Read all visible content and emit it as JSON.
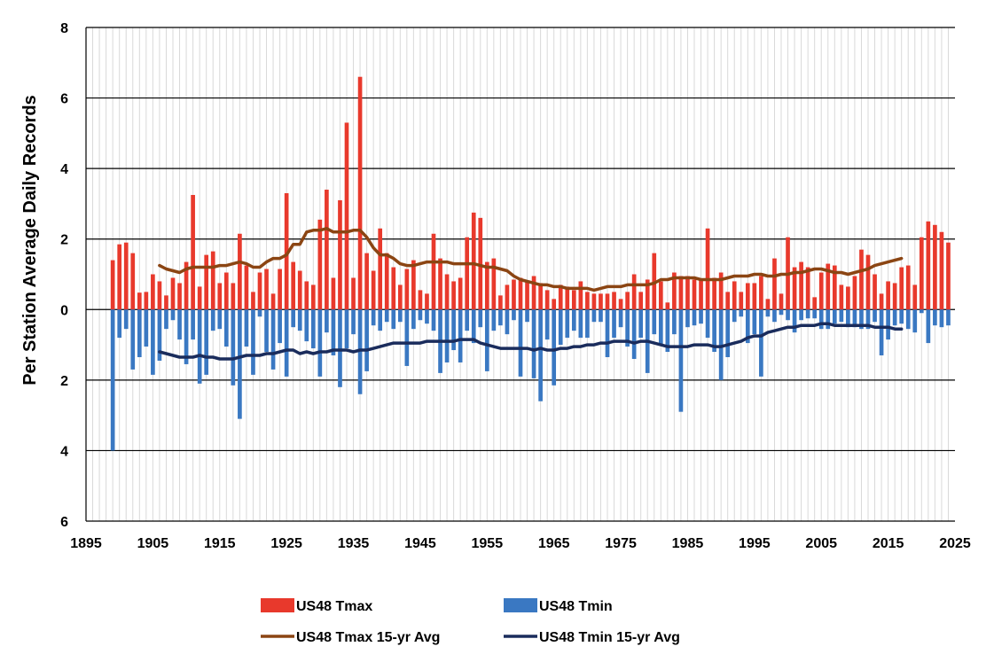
{
  "chart_data": {
    "type": "bar",
    "title": "",
    "ylabel": "Per Station Average Daily Records",
    "xlabel": "",
    "xlim": [
      1895,
      2025
    ],
    "ylim": [
      -6,
      8
    ],
    "x_ticks": [
      1895,
      1905,
      1915,
      1925,
      1935,
      1945,
      1955,
      1965,
      1975,
      1985,
      1995,
      2005,
      2015,
      2025
    ],
    "y_ticks": [
      {
        "value": 8,
        "label": "8"
      },
      {
        "value": 6,
        "label": "6"
      },
      {
        "value": 4,
        "label": "4"
      },
      {
        "value": 2,
        "label": "2"
      },
      {
        "value": 0,
        "label": "0"
      },
      {
        "value": -2,
        "label": "2"
      },
      {
        "value": -4,
        "label": "4"
      },
      {
        "value": -6,
        "label": "6"
      }
    ],
    "grid": "horizontal and vertical",
    "legend_position": "bottom",
    "colors": {
      "tmax": "#e8392c",
      "tmin": "#3a78c2",
      "tmax_avg": "#8b4513",
      "tmin_avg": "#1a2c5c"
    },
    "years": [
      1899,
      1900,
      1901,
      1902,
      1903,
      1904,
      1905,
      1906,
      1907,
      1908,
      1909,
      1910,
      1911,
      1912,
      1913,
      1914,
      1915,
      1916,
      1917,
      1918,
      1919,
      1920,
      1921,
      1922,
      1923,
      1924,
      1925,
      1926,
      1927,
      1928,
      1929,
      1930,
      1931,
      1932,
      1933,
      1934,
      1935,
      1936,
      1937,
      1938,
      1939,
      1940,
      1941,
      1942,
      1943,
      1944,
      1945,
      1946,
      1947,
      1948,
      1949,
      1950,
      1951,
      1952,
      1953,
      1954,
      1955,
      1956,
      1957,
      1958,
      1959,
      1960,
      1961,
      1962,
      1963,
      1964,
      1965,
      1966,
      1967,
      1968,
      1969,
      1970,
      1971,
      1972,
      1973,
      1974,
      1975,
      1976,
      1977,
      1978,
      1979,
      1980,
      1981,
      1982,
      1983,
      1984,
      1985,
      1986,
      1987,
      1988,
      1989,
      1990,
      1991,
      1992,
      1993,
      1994,
      1995,
      1996,
      1997,
      1998,
      1999,
      2000,
      2001,
      2002,
      2003,
      2004,
      2005,
      2006,
      2007,
      2008,
      2009,
      2010,
      2011,
      2012,
      2013,
      2014,
      2015,
      2016,
      2017,
      2018,
      2019,
      2020,
      2021,
      2022,
      2023,
      2024
    ],
    "series": [
      {
        "name": "US48 Tmax",
        "type": "bar",
        "values": [
          1.4,
          1.85,
          1.9,
          1.6,
          0.48,
          0.5,
          1.0,
          0.8,
          0.4,
          0.9,
          0.75,
          1.35,
          3.25,
          0.65,
          1.55,
          1.65,
          0.75,
          1.05,
          0.75,
          2.15,
          1.25,
          0.5,
          1.05,
          1.15,
          0.45,
          1.15,
          3.3,
          1.35,
          1.1,
          0.8,
          0.7,
          2.55,
          3.4,
          0.9,
          3.1,
          5.3,
          0.9,
          6.6,
          1.6,
          1.1,
          2.3,
          1.6,
          1.2,
          0.7,
          1.15,
          1.4,
          0.55,
          0.45,
          2.15,
          1.45,
          1.0,
          0.8,
          0.9,
          2.05,
          2.75,
          2.6,
          1.35,
          1.45,
          0.4,
          0.7,
          0.85,
          0.9,
          0.8,
          0.95,
          0.75,
          0.55,
          0.3,
          0.7,
          0.65,
          0.55,
          0.8,
          0.5,
          0.45,
          0.45,
          0.45,
          0.5,
          0.3,
          0.5,
          1.0,
          0.5,
          0.85,
          1.6,
          0.8,
          0.2,
          1.05,
          0.95,
          0.95,
          0.85,
          0.85,
          2.3,
          0.9,
          1.05,
          0.5,
          0.8,
          0.5,
          0.75,
          0.75,
          0.95,
          0.3,
          1.45,
          0.45,
          2.05,
          1.2,
          1.35,
          1.2,
          0.35,
          1.05,
          1.3,
          1.25,
          0.7,
          0.65,
          0.95,
          1.7,
          1.55,
          1.0,
          0.45,
          0.8,
          0.75,
          1.2,
          1.25,
          0.7,
          2.05,
          2.5,
          2.4,
          2.2,
          1.9
        ]
      },
      {
        "name": "US48 Tmin",
        "type": "bar",
        "values": [
          -4.0,
          -0.8,
          -0.55,
          -1.7,
          -1.35,
          -1.05,
          -1.85,
          -1.45,
          -0.55,
          -0.3,
          -0.85,
          -1.55,
          -0.85,
          -2.1,
          -1.85,
          -0.6,
          -0.55,
          -1.05,
          -2.15,
          -3.1,
          -1.05,
          -1.85,
          -0.2,
          -1.2,
          -1.7,
          -0.95,
          -1.9,
          -0.5,
          -0.6,
          -0.9,
          -1.1,
          -1.9,
          -0.65,
          -1.3,
          -2.2,
          -1.1,
          -0.7,
          -2.4,
          -1.75,
          -0.45,
          -0.6,
          -0.35,
          -0.55,
          -0.35,
          -1.6,
          -0.55,
          -0.3,
          -0.4,
          -0.6,
          -1.8,
          -1.5,
          -1.15,
          -1.5,
          -0.6,
          -0.95,
          -0.5,
          -1.75,
          -0.6,
          -0.45,
          -0.7,
          -0.3,
          -1.9,
          -0.35,
          -1.95,
          -2.6,
          -0.85,
          -2.15,
          -1.0,
          -0.8,
          -0.6,
          -0.8,
          -0.8,
          -0.35,
          -0.35,
          -1.35,
          -0.8,
          -0.5,
          -1.05,
          -1.4,
          -0.8,
          -1.8,
          -0.7,
          -1.0,
          -1.2,
          -0.7,
          -2.9,
          -0.5,
          -0.45,
          -0.4,
          -0.8,
          -1.2,
          -2.0,
          -1.35,
          -0.35,
          -0.2,
          -0.95,
          -0.7,
          -1.9,
          -0.2,
          -0.35,
          -0.15,
          -0.3,
          -0.65,
          -0.3,
          -0.25,
          -0.25,
          -0.55,
          -0.55,
          -0.4,
          -0.35,
          -0.5,
          -0.5,
          -0.55,
          -0.55,
          -0.35,
          -1.3,
          -0.85,
          -0.45,
          -0.4,
          -0.55,
          -0.65,
          -0.1,
          -0.95,
          -0.45,
          -0.5,
          -0.45
        ]
      },
      {
        "name": "US48 Tmax 15-yr Avg",
        "type": "line",
        "x": [
          1906,
          1907,
          1908,
          1909,
          1910,
          1911,
          1912,
          1913,
          1914,
          1915,
          1916,
          1917,
          1918,
          1919,
          1920,
          1921,
          1922,
          1923,
          1924,
          1925,
          1926,
          1927,
          1928,
          1929,
          1930,
          1931,
          1932,
          1933,
          1934,
          1935,
          1936,
          1937,
          1938,
          1939,
          1940,
          1941,
          1942,
          1943,
          1944,
          1945,
          1946,
          1947,
          1948,
          1949,
          1950,
          1951,
          1952,
          1953,
          1954,
          1955,
          1956,
          1957,
          1958,
          1959,
          1960,
          1961,
          1962,
          1963,
          1964,
          1965,
          1966,
          1967,
          1968,
          1969,
          1970,
          1971,
          1972,
          1973,
          1974,
          1975,
          1976,
          1977,
          1978,
          1979,
          1980,
          1981,
          1982,
          1983,
          1984,
          1985,
          1986,
          1987,
          1988,
          1989,
          1990,
          1991,
          1992,
          1993,
          1994,
          1995,
          1996,
          1997,
          1998,
          1999,
          2000,
          2001,
          2002,
          2003,
          2004,
          2005,
          2006,
          2007,
          2008,
          2009,
          2010,
          2011,
          2012,
          2013,
          2014,
          2015,
          2016,
          2017
        ],
        "values": [
          1.25,
          1.15,
          1.1,
          1.05,
          1.15,
          1.2,
          1.2,
          1.2,
          1.2,
          1.25,
          1.25,
          1.3,
          1.35,
          1.3,
          1.2,
          1.2,
          1.35,
          1.45,
          1.45,
          1.55,
          1.85,
          1.85,
          2.2,
          2.25,
          2.25,
          2.3,
          2.2,
          2.2,
          2.2,
          2.25,
          2.25,
          2.05,
          1.75,
          1.55,
          1.55,
          1.45,
          1.3,
          1.25,
          1.25,
          1.3,
          1.35,
          1.35,
          1.35,
          1.35,
          1.3,
          1.3,
          1.3,
          1.3,
          1.25,
          1.2,
          1.2,
          1.15,
          1.1,
          0.95,
          0.85,
          0.8,
          0.75,
          0.7,
          0.7,
          0.65,
          0.65,
          0.6,
          0.6,
          0.6,
          0.6,
          0.55,
          0.6,
          0.65,
          0.65,
          0.65,
          0.7,
          0.7,
          0.7,
          0.7,
          0.75,
          0.85,
          0.85,
          0.9,
          0.9,
          0.9,
          0.9,
          0.85,
          0.85,
          0.85,
          0.85,
          0.9,
          0.95,
          0.95,
          0.95,
          1.0,
          1.0,
          0.95,
          0.95,
          1.0,
          1.0,
          1.05,
          1.05,
          1.1,
          1.15,
          1.15,
          1.1,
          1.05,
          1.05,
          1.0,
          1.05,
          1.1,
          1.15,
          1.25,
          1.3,
          1.35,
          1.4,
          1.45
        ]
      },
      {
        "name": "US48 Tmin 15-yr Avg",
        "type": "line",
        "x": [
          1906,
          1907,
          1908,
          1909,
          1910,
          1911,
          1912,
          1913,
          1914,
          1915,
          1916,
          1917,
          1918,
          1919,
          1920,
          1921,
          1922,
          1923,
          1924,
          1925,
          1926,
          1927,
          1928,
          1929,
          1930,
          1931,
          1932,
          1933,
          1934,
          1935,
          1936,
          1937,
          1938,
          1939,
          1940,
          1941,
          1942,
          1943,
          1944,
          1945,
          1946,
          1947,
          1948,
          1949,
          1950,
          1951,
          1952,
          1953,
          1954,
          1955,
          1956,
          1957,
          1958,
          1959,
          1960,
          1961,
          1962,
          1963,
          1964,
          1965,
          1966,
          1967,
          1968,
          1969,
          1970,
          1971,
          1972,
          1973,
          1974,
          1975,
          1976,
          1977,
          1978,
          1979,
          1980,
          1981,
          1982,
          1983,
          1984,
          1985,
          1986,
          1987,
          1988,
          1989,
          1990,
          1991,
          1992,
          1993,
          1994,
          1995,
          1996,
          1997,
          1998,
          1999,
          2000,
          2001,
          2002,
          2003,
          2004,
          2005,
          2006,
          2007,
          2008,
          2009,
          2010,
          2011,
          2012,
          2013,
          2014,
          2015,
          2016,
          2017
        ],
        "values": [
          -1.2,
          -1.25,
          -1.3,
          -1.35,
          -1.35,
          -1.35,
          -1.3,
          -1.35,
          -1.35,
          -1.4,
          -1.4,
          -1.4,
          -1.35,
          -1.3,
          -1.3,
          -1.3,
          -1.25,
          -1.25,
          -1.2,
          -1.15,
          -1.15,
          -1.25,
          -1.2,
          -1.25,
          -1.2,
          -1.2,
          -1.15,
          -1.15,
          -1.15,
          -1.2,
          -1.15,
          -1.15,
          -1.1,
          -1.05,
          -1.0,
          -0.95,
          -0.95,
          -0.95,
          -0.95,
          -0.95,
          -0.9,
          -0.9,
          -0.9,
          -0.9,
          -0.9,
          -0.85,
          -0.85,
          -0.85,
          -0.95,
          -1.0,
          -1.05,
          -1.1,
          -1.1,
          -1.1,
          -1.1,
          -1.1,
          -1.15,
          -1.1,
          -1.15,
          -1.15,
          -1.1,
          -1.1,
          -1.05,
          -1.05,
          -1.0,
          -1.0,
          -0.95,
          -0.95,
          -0.9,
          -0.9,
          -0.9,
          -0.95,
          -0.9,
          -0.9,
          -0.95,
          -1.0,
          -1.05,
          -1.05,
          -1.05,
          -1.05,
          -1.0,
          -1.0,
          -1.0,
          -1.05,
          -1.05,
          -1.0,
          -0.95,
          -0.9,
          -0.8,
          -0.75,
          -0.75,
          -0.65,
          -0.6,
          -0.55,
          -0.5,
          -0.5,
          -0.45,
          -0.45,
          -0.45,
          -0.4,
          -0.4,
          -0.45,
          -0.45,
          -0.45,
          -0.45,
          -0.45,
          -0.45,
          -0.5,
          -0.5,
          -0.5,
          -0.55,
          -0.55
        ]
      }
    ],
    "legend": [
      {
        "label": "US48 Tmax",
        "kind": "bar",
        "color": "#e8392c"
      },
      {
        "label": "US48 Tmin",
        "kind": "bar",
        "color": "#3a78c2"
      },
      {
        "label": "US48 Tmax 15-yr Avg",
        "kind": "line",
        "color": "#8b4513"
      },
      {
        "label": "US48 Tmin 15-yr Avg",
        "kind": "line",
        "color": "#1a2c5c"
      }
    ]
  }
}
